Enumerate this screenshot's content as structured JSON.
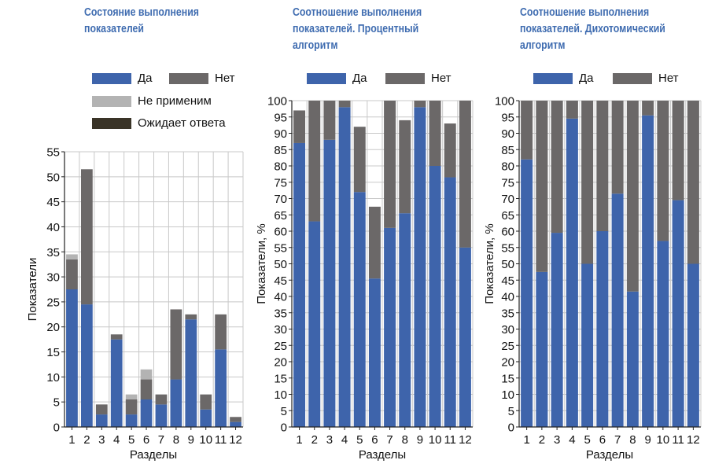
{
  "colors": {
    "yes": "#3e64ab",
    "no": "#6b6868",
    "na": "#b3b3b3",
    "waiting": "#3a3428",
    "grid": "#c8c8c8"
  },
  "chart_data": [
    {
      "type": "bar",
      "stacked": true,
      "title_lines": [
        "Состояние выполнения",
        "показателей"
      ],
      "xlabel": "Разделы",
      "ylabel": "Показатели",
      "ylim": [
        0,
        55
      ],
      "yticks": [
        0,
        5,
        10,
        15,
        20,
        25,
        30,
        35,
        40,
        45,
        50,
        55
      ],
      "grid": true,
      "categories": [
        "1",
        "2",
        "3",
        "4",
        "5",
        "6",
        "7",
        "8",
        "9",
        "10",
        "11",
        "12"
      ],
      "series": [
        {
          "name": "Да",
          "color_key": "yes",
          "values": [
            27.5,
            24.5,
            2.5,
            17.5,
            2.5,
            5.5,
            4.5,
            9.5,
            21.5,
            3.5,
            15.5,
            1
          ]
        },
        {
          "name": "Нет",
          "color_key": "no",
          "values": [
            6,
            27,
            2,
            1,
            3,
            4,
            2,
            14,
            1,
            3,
            7,
            1
          ]
        },
        {
          "name": "Не применим",
          "color_key": "na",
          "values": [
            1,
            0,
            0,
            0,
            1,
            2,
            0,
            0,
            0,
            0,
            0,
            0
          ]
        },
        {
          "name": "Ожидает ответа",
          "color_key": "waiting",
          "values": [
            0,
            0,
            0,
            0,
            0,
            0,
            0,
            0,
            0,
            0,
            0,
            0
          ]
        }
      ]
    },
    {
      "type": "bar",
      "stacked": true,
      "title_lines": [
        "Соотношение выполнения",
        "показателей. Процентный",
        "алгоритм"
      ],
      "xlabel": "Разделы",
      "ylabel": "Показатели, %",
      "ylim": [
        0,
        100
      ],
      "yticks": [
        0,
        5,
        10,
        15,
        20,
        25,
        30,
        35,
        40,
        45,
        50,
        55,
        60,
        65,
        70,
        75,
        80,
        85,
        90,
        95,
        100
      ],
      "grid": true,
      "categories": [
        "1",
        "2",
        "3",
        "4",
        "5",
        "6",
        "7",
        "8",
        "9",
        "10",
        "11",
        "12"
      ],
      "series": [
        {
          "name": "Да",
          "color_key": "yes",
          "values": [
            87,
            63,
            88,
            98,
            72,
            45.5,
            61,
            65.5,
            98,
            80,
            76.5,
            55
          ]
        },
        {
          "name": "Нет",
          "color_key": "no",
          "values": [
            10,
            37,
            12,
            2,
            20,
            22,
            39,
            28.5,
            2,
            20,
            16.5,
            45
          ]
        }
      ]
    },
    {
      "type": "bar",
      "stacked": true,
      "title_lines": [
        "Соотношение выполнения",
        "показателей. Дихотомический",
        "алгоритм"
      ],
      "xlabel": "Разделы",
      "ylabel": "Показатели, %",
      "ylim": [
        0,
        100
      ],
      "yticks": [
        0,
        5,
        10,
        15,
        20,
        25,
        30,
        35,
        40,
        45,
        50,
        55,
        60,
        65,
        70,
        75,
        80,
        85,
        90,
        95,
        100
      ],
      "grid": true,
      "categories": [
        "1",
        "2",
        "3",
        "4",
        "5",
        "6",
        "7",
        "8",
        "9",
        "10",
        "11",
        "12"
      ],
      "series": [
        {
          "name": "Да",
          "color_key": "yes",
          "values": [
            82,
            47.5,
            59.5,
            94.5,
            50,
            60,
            71.5,
            41.5,
            95.5,
            57,
            69.5,
            50
          ]
        },
        {
          "name": "Нет",
          "color_key": "no",
          "values": [
            18,
            52.5,
            40.5,
            5.5,
            50,
            40,
            28.5,
            58.5,
            4.5,
            43,
            30.5,
            50
          ]
        }
      ]
    }
  ]
}
